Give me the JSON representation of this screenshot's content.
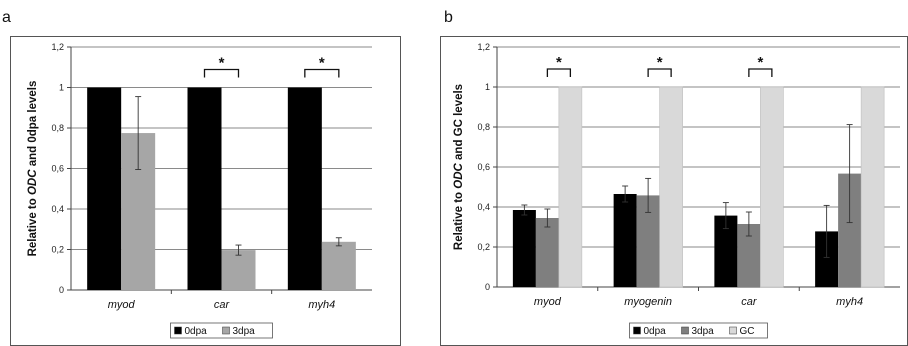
{
  "chart_data": [
    {
      "panel": "a",
      "type": "bar",
      "ylabel_parts": [
        "Relative to ",
        "ODC",
        " and 0dpa levels"
      ],
      "ylim": [
        0,
        1.2
      ],
      "yticks": [
        "0",
        "0,2",
        "0,4",
        "0,6",
        "0,8",
        "1",
        "1,2"
      ],
      "grid": true,
      "legend_position": "bottom",
      "categories": [
        "myod",
        "car",
        "myh4"
      ],
      "series": [
        {
          "name": "0dpa",
          "color": "#000000",
          "values": [
            1,
            1,
            1
          ],
          "errors": [
            0,
            0,
            0
          ]
        },
        {
          "name": "3dpa",
          "color": "#a6a6a6",
          "values": [
            0.775,
            0.197,
            0.238
          ],
          "errors": [
            0.18,
            0.025,
            0.02
          ]
        }
      ],
      "significance": [
        {
          "category": "car",
          "from_series": 0,
          "to_series": 1,
          "label": "*"
        },
        {
          "category": "myh4",
          "from_series": 0,
          "to_series": 1,
          "label": "*"
        }
      ]
    },
    {
      "panel": "b",
      "type": "bar",
      "ylabel_parts": [
        "Relative to ",
        "ODC",
        " and GC levels"
      ],
      "ylim": [
        0,
        1.2
      ],
      "yticks": [
        "0",
        "0,2",
        "0,4",
        "0,6",
        "0,8",
        "1",
        "1,2"
      ],
      "grid": true,
      "legend_position": "bottom",
      "categories": [
        "myod",
        "myogenin",
        "car",
        "myh4"
      ],
      "series": [
        {
          "name": "0dpa",
          "color": "#000000",
          "values": [
            0.385,
            0.465,
            0.357,
            0.278
          ],
          "errors": [
            0.025,
            0.04,
            0.065,
            0.13
          ]
        },
        {
          "name": "3dpa",
          "color": "#7f7f7f",
          "values": [
            0.345,
            0.458,
            0.315,
            0.567
          ],
          "errors": [
            0.045,
            0.085,
            0.06,
            0.245
          ]
        },
        {
          "name": "GC",
          "color": "#d9d9d9",
          "values": [
            1,
            1,
            1,
            1
          ],
          "errors": [
            0,
            0,
            0,
            0
          ]
        }
      ],
      "significance": [
        {
          "category": "myod",
          "from_series": 1,
          "to_series": 2,
          "label": "*"
        },
        {
          "category": "myogenin",
          "from_series": 1,
          "to_series": 2,
          "label": "*"
        },
        {
          "category": "car",
          "from_series": 1,
          "to_series": 2,
          "label": "*"
        }
      ]
    }
  ]
}
